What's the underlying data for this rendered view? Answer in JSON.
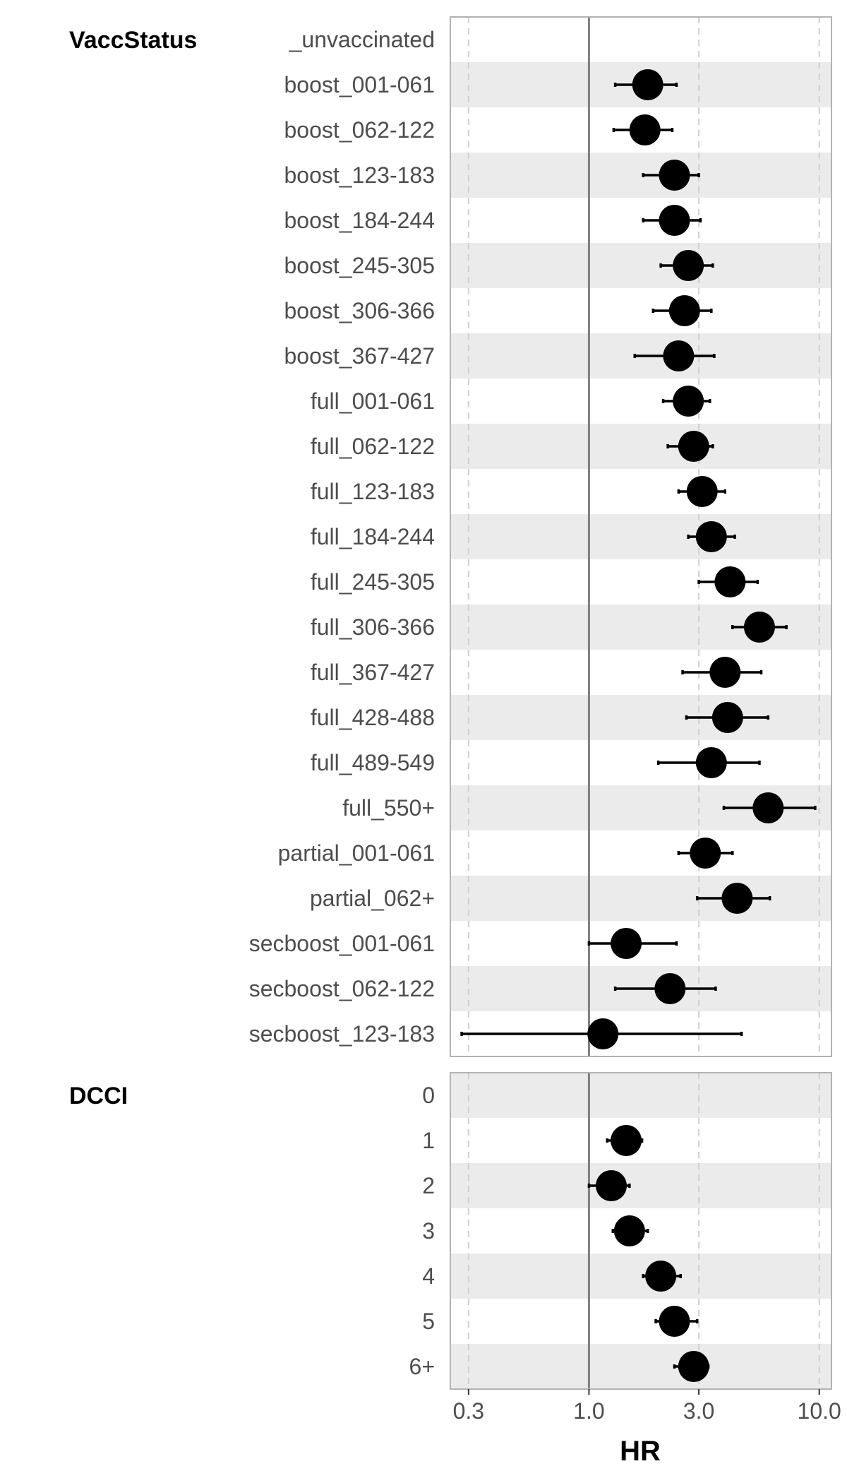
{
  "chart_data": {
    "type": "forest",
    "xlabel": "HR",
    "x_scale": "log",
    "xlim": [
      0.25,
      11.3
    ],
    "x_ticks": [
      0.3,
      1.0,
      3.0,
      10.0
    ],
    "x_tick_labels": [
      "0.3",
      "1.0",
      "3.0",
      "10.0"
    ],
    "reference_line": 1.0,
    "panels": [
      {
        "group": "VaccStatus",
        "rows": [
          {
            "label": "_unvaccinated",
            "hr": null,
            "lo": null,
            "hi": null
          },
          {
            "label": "boost_001-061",
            "hr": 1.8,
            "lo": 1.3,
            "hi": 2.4
          },
          {
            "label": "boost_062-122",
            "hr": 1.75,
            "lo": 1.28,
            "hi": 2.3
          },
          {
            "label": "boost_123-183",
            "hr": 2.35,
            "lo": 1.72,
            "hi": 3.0
          },
          {
            "label": "boost_184-244",
            "hr": 2.35,
            "lo": 1.72,
            "hi": 3.05
          },
          {
            "label": "boost_245-305",
            "hr": 2.7,
            "lo": 2.05,
            "hi": 3.45
          },
          {
            "label": "boost_306-366",
            "hr": 2.6,
            "lo": 1.9,
            "hi": 3.4
          },
          {
            "label": "boost_367-427",
            "hr": 2.45,
            "lo": 1.58,
            "hi": 3.5
          },
          {
            "label": "full_001-061",
            "hr": 2.7,
            "lo": 2.1,
            "hi": 3.35
          },
          {
            "label": "full_062-122",
            "hr": 2.85,
            "lo": 2.2,
            "hi": 3.45
          },
          {
            "label": "full_123-183",
            "hr": 3.1,
            "lo": 2.45,
            "hi": 3.9
          },
          {
            "label": "full_184-244",
            "hr": 3.4,
            "lo": 2.7,
            "hi": 4.3
          },
          {
            "label": "full_245-305",
            "hr": 4.1,
            "lo": 3.0,
            "hi": 5.4
          },
          {
            "label": "full_306-366",
            "hr": 5.5,
            "lo": 4.2,
            "hi": 7.2
          },
          {
            "label": "full_367-427",
            "hr": 3.9,
            "lo": 2.55,
            "hi": 5.6
          },
          {
            "label": "full_428-488",
            "hr": 4.0,
            "lo": 2.65,
            "hi": 6.0
          },
          {
            "label": "full_489-549",
            "hr": 3.4,
            "lo": 2.0,
            "hi": 5.5
          },
          {
            "label": "full_550+",
            "hr": 6.0,
            "lo": 3.85,
            "hi": 9.6
          },
          {
            "label": "partial_001-061",
            "hr": 3.2,
            "lo": 2.45,
            "hi": 4.2
          },
          {
            "label": "partial_062+",
            "hr": 4.4,
            "lo": 2.95,
            "hi": 6.1
          },
          {
            "label": "secboost_001-061",
            "hr": 1.45,
            "lo": 1.0,
            "hi": 2.4
          },
          {
            "label": "secboost_062-122",
            "hr": 2.25,
            "lo": 1.3,
            "hi": 3.55
          },
          {
            "label": "secboost_123-183",
            "hr": 1.15,
            "lo": 0.28,
            "hi": 4.6
          }
        ]
      },
      {
        "group": "DCCI",
        "rows": [
          {
            "label": "0",
            "hr": null,
            "lo": null,
            "hi": null
          },
          {
            "label": "1",
            "hr": 1.45,
            "lo": 1.2,
            "hi": 1.7
          },
          {
            "label": "2",
            "hr": 1.25,
            "lo": 1.0,
            "hi": 1.5
          },
          {
            "label": "3",
            "hr": 1.5,
            "lo": 1.27,
            "hi": 1.8
          },
          {
            "label": "4",
            "hr": 2.05,
            "lo": 1.72,
            "hi": 2.5
          },
          {
            "label": "5",
            "hr": 2.35,
            "lo": 1.95,
            "hi": 2.95
          },
          {
            "label": "6+",
            "hr": 2.85,
            "lo": 2.35,
            "hi": 3.3
          }
        ]
      }
    ]
  }
}
